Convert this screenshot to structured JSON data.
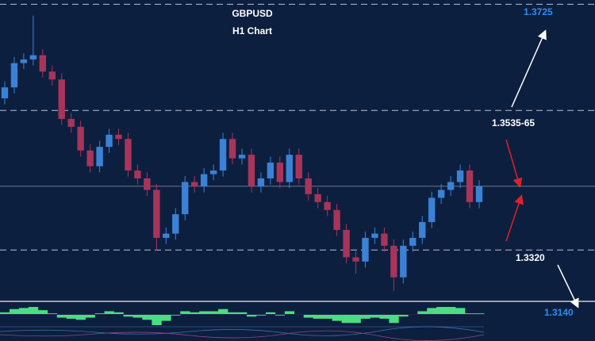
{
  "chart_data": {
    "type": "candlestick",
    "title": "GBPUSD",
    "subtitle": "H1 Chart",
    "ylim": [
      1.3238,
      1.3732
    ],
    "ohlc": [
      [
        1.357,
        1.3598,
        1.356,
        1.3588
      ],
      [
        1.3588,
        1.3638,
        1.3578,
        1.3628
      ],
      [
        1.3628,
        1.3644,
        1.3618,
        1.3634
      ],
      [
        1.3634,
        1.3706,
        1.3624,
        1.3641
      ],
      [
        1.3641,
        1.3651,
        1.3604,
        1.3614
      ],
      [
        1.3614,
        1.3624,
        1.3591,
        1.3601
      ],
      [
        1.3601,
        1.3611,
        1.3526,
        1.3536
      ],
      [
        1.3536,
        1.3546,
        1.3513,
        1.3523
      ],
      [
        1.3523,
        1.3533,
        1.3474,
        1.3484
      ],
      [
        1.3484,
        1.3494,
        1.3448,
        1.3458
      ],
      [
        1.3458,
        1.35,
        1.3448,
        1.349
      ],
      [
        1.349,
        1.352,
        1.348,
        1.351
      ],
      [
        1.351,
        1.352,
        1.3493,
        1.3503
      ],
      [
        1.3503,
        1.3513,
        1.3441,
        1.3451
      ],
      [
        1.3451,
        1.3461,
        1.3428,
        1.3438
      ],
      [
        1.3438,
        1.3448,
        1.3409,
        1.3419
      ],
      [
        1.3419,
        1.3429,
        1.332,
        1.334
      ],
      [
        1.334,
        1.3357,
        1.333,
        1.3347
      ],
      [
        1.3347,
        1.3389,
        1.3337,
        1.3379
      ],
      [
        1.3379,
        1.3442,
        1.3369,
        1.3432
      ],
      [
        1.3432,
        1.3442,
        1.3415,
        1.3425
      ],
      [
        1.3425,
        1.3455,
        1.3415,
        1.3445
      ],
      [
        1.3445,
        1.3461,
        1.3435,
        1.3451
      ],
      [
        1.3451,
        1.3513,
        1.3441,
        1.3503
      ],
      [
        1.3503,
        1.3513,
        1.3461,
        1.3471
      ],
      [
        1.3471,
        1.3487,
        1.3461,
        1.3477
      ],
      [
        1.3477,
        1.3487,
        1.3415,
        1.3425
      ],
      [
        1.3425,
        1.3448,
        1.3415,
        1.3438
      ],
      [
        1.3438,
        1.3474,
        1.3428,
        1.3464
      ],
      [
        1.3464,
        1.3474,
        1.3422,
        1.3432
      ],
      [
        1.3432,
        1.3487,
        1.3422,
        1.3477
      ],
      [
        1.3477,
        1.3487,
        1.3428,
        1.3438
      ],
      [
        1.3438,
        1.3448,
        1.3402,
        1.3412
      ],
      [
        1.3412,
        1.3422,
        1.3389,
        1.3399
      ],
      [
        1.3399,
        1.3409,
        1.3376,
        1.3386
      ],
      [
        1.3386,
        1.3396,
        1.3343,
        1.3353
      ],
      [
        1.3353,
        1.3363,
        1.3298,
        1.3308
      ],
      [
        1.3308,
        1.3318,
        1.3281,
        1.3301
      ],
      [
        1.3301,
        1.335,
        1.3291,
        1.334
      ],
      [
        1.334,
        1.3357,
        1.333,
        1.3347
      ],
      [
        1.3347,
        1.3357,
        1.3317,
        1.3327
      ],
      [
        1.3327,
        1.3337,
        1.3253,
        1.3275
      ],
      [
        1.3275,
        1.3337,
        1.3265,
        1.3327
      ],
      [
        1.3327,
        1.335,
        1.3317,
        1.334
      ],
      [
        1.334,
        1.3376,
        1.333,
        1.3366
      ],
      [
        1.3366,
        1.3416,
        1.3356,
        1.3406
      ],
      [
        1.3406,
        1.3429,
        1.3396,
        1.3419
      ],
      [
        1.3419,
        1.3442,
        1.3409,
        1.3432
      ],
      [
        1.3432,
        1.3461,
        1.3422,
        1.3451
      ],
      [
        1.3451,
        1.3461,
        1.3389,
        1.3399
      ],
      [
        1.3399,
        1.3435,
        1.3389,
        1.3425
      ]
    ],
    "up_color": "#3b82d6",
    "down_color": "#a8345a",
    "levels": [
      1.3725,
      {
        "value": 1.355,
        "label": "1.3535-65"
      },
      {
        "value": 1.332,
        "label": "1.3320"
      },
      {
        "value": 1.314,
        "label": "1.3140"
      }
    ],
    "level_colors": [
      "#2f8cf0",
      "#ffffff",
      "#ffffff",
      "#2f8cf0"
    ],
    "oscillator": {
      "ylim": [
        -1,
        1
      ],
      "color": "#4ade80",
      "values": [
        0.2,
        0.5,
        0.6,
        0.7,
        0.4,
        0.1,
        -0.3,
        -0.4,
        -0.5,
        -0.3,
        0.1,
        0.3,
        0.2,
        -0.2,
        -0.3,
        -0.5,
        -1,
        -0.6,
        -0.1,
        0.3,
        0.2,
        0.3,
        0.3,
        0.5,
        0.2,
        0.2,
        -0.2,
        -0.1,
        0.2,
        -0.1,
        0.3,
        0,
        -0.3,
        -0.4,
        -0.4,
        -0.6,
        -0.8,
        -0.8,
        -0.4,
        -0.3,
        -0.4,
        -0.8,
        -0.2,
        0,
        0.3,
        0.6,
        0.7,
        0.7,
        0.6,
        0.1,
        0.1
      ]
    }
  }
}
